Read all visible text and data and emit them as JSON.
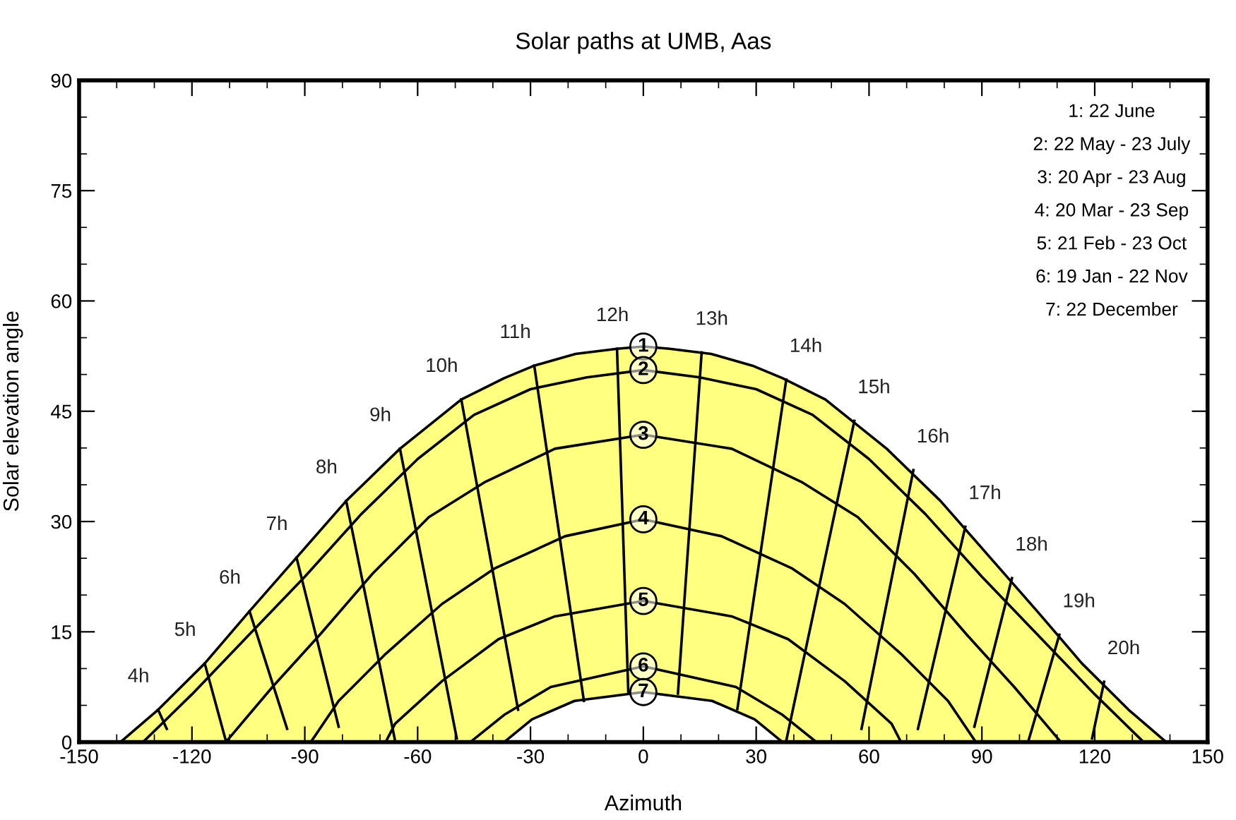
{
  "chart_data": {
    "type": "line",
    "title": "Solar paths at UMB, Aas",
    "xlabel": "Azimuth",
    "ylabel": "Solar elevation angle",
    "xlim": [
      -150,
      150
    ],
    "xticks": [
      -150,
      -120,
      -90,
      -60,
      -30,
      0,
      30,
      60,
      90,
      120,
      150
    ],
    "ylim": [
      0,
      90
    ],
    "yticks": [
      0,
      15,
      30,
      45,
      60,
      75,
      90
    ],
    "grid": false,
    "legend": "center",
    "marker": "none",
    "line_style": "solid",
    "series": [
      {
        "name": "1",
        "type": "area",
        "color": "#ffff80",
        "x": [
          -139,
          -129,
          -116.6,
          -104.7,
          -92.2,
          -79,
          -64.7,
          -48.4,
          -37,
          -29,
          -18,
          -7,
          0,
          7,
          18,
          29,
          37,
          48.4,
          64.7,
          79,
          92.2,
          104.7,
          116.6,
          129,
          139
        ],
        "values": [
          0,
          4.4,
          10.7,
          17.8,
          25.1,
          32.8,
          39.9,
          46.6,
          49.5,
          51.2,
          52.8,
          53.5,
          53.8,
          53.5,
          52.8,
          51.2,
          49.5,
          46.6,
          39.9,
          32.8,
          25.1,
          17.8,
          10.7,
          4.4,
          0
        ]
      },
      {
        "name": "2",
        "color": "#000000",
        "x": [
          -133,
          -120,
          -105,
          -90,
          -75,
          -60,
          -45,
          -30,
          -15,
          0,
          15,
          30,
          45,
          60,
          75,
          90,
          105,
          120,
          133
        ],
        "values": [
          0,
          6.5,
          14.5,
          22.5,
          31,
          38.5,
          44.5,
          48,
          49.6,
          50.6,
          49.6,
          48,
          44.5,
          38.5,
          31,
          22.5,
          14.5,
          6.5,
          0
        ]
      },
      {
        "name": "3",
        "color": "#000000",
        "x": [
          -111,
          -98.6,
          -86,
          -72,
          -57,
          -42,
          -23.5,
          0,
          23.5,
          42,
          57,
          72,
          86,
          98.6,
          111
        ],
        "values": [
          0,
          7.5,
          14.6,
          22.9,
          30.6,
          35.4,
          39.9,
          41.8,
          39.9,
          35.4,
          30.6,
          22.9,
          14.6,
          7.5,
          0
        ]
      },
      {
        "name": "4",
        "color": "#000000",
        "x": [
          -88.4,
          -81,
          -68.5,
          -53.5,
          -39.6,
          -20.8,
          0,
          20.8,
          39.6,
          53.5,
          68.5,
          81,
          88.4
        ],
        "values": [
          0,
          5.6,
          12,
          18.8,
          23.6,
          28,
          30.3,
          28,
          23.6,
          18.8,
          12,
          5.6,
          0
        ]
      },
      {
        "name": "5",
        "color": "#000000",
        "x": [
          -68.5,
          -66,
          -53.5,
          -38.5,
          -23.5,
          0,
          23.5,
          38.5,
          53.5,
          66,
          68.5
        ],
        "values": [
          0,
          2.5,
          8.3,
          14,
          17.1,
          19.2,
          17.1,
          14,
          8.3,
          2.5,
          0
        ]
      },
      {
        "name": "6",
        "color": "#000000",
        "x": [
          -46,
          -37,
          -24.6,
          0,
          24.6,
          37,
          46
        ],
        "values": [
          0,
          3.7,
          7.5,
          10.3,
          7.5,
          3.7,
          0
        ]
      },
      {
        "name": "7",
        "type": "area",
        "color": "#ffffff",
        "x": [
          -37,
          -29.6,
          -18.3,
          0,
          18.3,
          29.6,
          37
        ],
        "values": [
          0,
          3.1,
          5.6,
          6.8,
          5.6,
          3.1,
          0
        ]
      },
      {
        "color": "#000000",
        "x": [
          -129,
          -126.7
        ],
        "values": [
          4.4,
          1.8
        ]
      },
      {
        "color": "#000000",
        "x": [
          -116.6,
          -111
        ],
        "values": [
          10.7,
          0.2
        ]
      },
      {
        "color": "#000000",
        "x": [
          -104.7,
          -94.7
        ],
        "values": [
          17.8,
          1.8
        ]
      },
      {
        "color": "#000000",
        "x": [
          -92.2,
          -81
        ],
        "values": [
          25.1,
          2.1
        ]
      },
      {
        "color": "#000000",
        "x": [
          -79,
          -66
        ],
        "values": [
          32.8,
          0.2
        ]
      },
      {
        "color": "#000000",
        "x": [
          -64.7,
          -49.6
        ],
        "values": [
          39.9,
          0.5
        ]
      },
      {
        "color": "#000000",
        "x": [
          -48.4,
          -33.3
        ],
        "values": [
          46.6,
          4.4
        ]
      },
      {
        "color": "#000000",
        "x": [
          -29,
          -15.8
        ],
        "values": [
          51.2,
          5.6
        ]
      },
      {
        "color": "#000000",
        "x": [
          -7,
          -4
        ],
        "values": [
          53.5,
          6.8
        ]
      },
      {
        "color": "#000000",
        "x": [
          15.5,
          9.2
        ],
        "values": [
          53,
          6.6
        ]
      },
      {
        "color": "#000000",
        "x": [
          38,
          25
        ],
        "values": [
          49.3,
          4.5
        ]
      },
      {
        "color": "#000000",
        "x": [
          56.1,
          38
        ],
        "values": [
          43.7,
          0.2
        ]
      },
      {
        "color": "#000000",
        "x": [
          71.8,
          58
        ],
        "values": [
          37,
          1.8
        ]
      },
      {
        "color": "#000000",
        "x": [
          85.6,
          73
        ],
        "values": [
          29.3,
          1.8
        ]
      },
      {
        "color": "#000000",
        "x": [
          98,
          88
        ],
        "values": [
          22.3,
          2.1
        ]
      },
      {
        "color": "#000000",
        "x": [
          110.6,
          102.4
        ],
        "values": [
          14.6,
          0.2
        ]
      },
      {
        "color": "#000000",
        "x": [
          122.5,
          119.3
        ],
        "values": [
          8.2,
          0.5
        ]
      }
    ],
    "annotations": [
      {
        "text": "4h",
        "x": -129,
        "y": 4.4
      },
      {
        "text": "5h",
        "x": -116.6,
        "y": 10.7
      },
      {
        "text": "6h",
        "x": -104.7,
        "y": 17.8
      },
      {
        "text": "7h",
        "x": -92.2,
        "y": 25.1
      },
      {
        "text": "8h",
        "x": -79,
        "y": 32.8
      },
      {
        "text": "9h",
        "x": -64.7,
        "y": 39.9
      },
      {
        "text": "10h",
        "x": -48.4,
        "y": 46.6
      },
      {
        "text": "11h",
        "x": -29,
        "y": 51.2
      },
      {
        "text": "12h",
        "x": -7,
        "y": 53.5
      },
      {
        "text": "13h",
        "x": 15.5,
        "y": 53
      },
      {
        "text": "14h",
        "x": 38,
        "y": 49.3
      },
      {
        "text": "15h",
        "x": 56.1,
        "y": 43.7
      },
      {
        "text": "16h",
        "x": 71.8,
        "y": 37
      },
      {
        "text": "17h",
        "x": 85.6,
        "y": 29.3
      },
      {
        "text": "18h",
        "x": 98,
        "y": 22.3
      },
      {
        "text": "19h",
        "x": 110.6,
        "y": 14.6
      },
      {
        "text": "20h",
        "x": 122.5,
        "y": 8.2
      },
      "1: 22 June",
      "2: 22 May - 23 July",
      "3: 20 Apr - 23 Aug",
      "4: 20 Mar - 23 Sep",
      "5: 21 Feb - 23 Oct",
      "6: 19 Jan - 22 Nov",
      "7: 22 December"
    ]
  }
}
